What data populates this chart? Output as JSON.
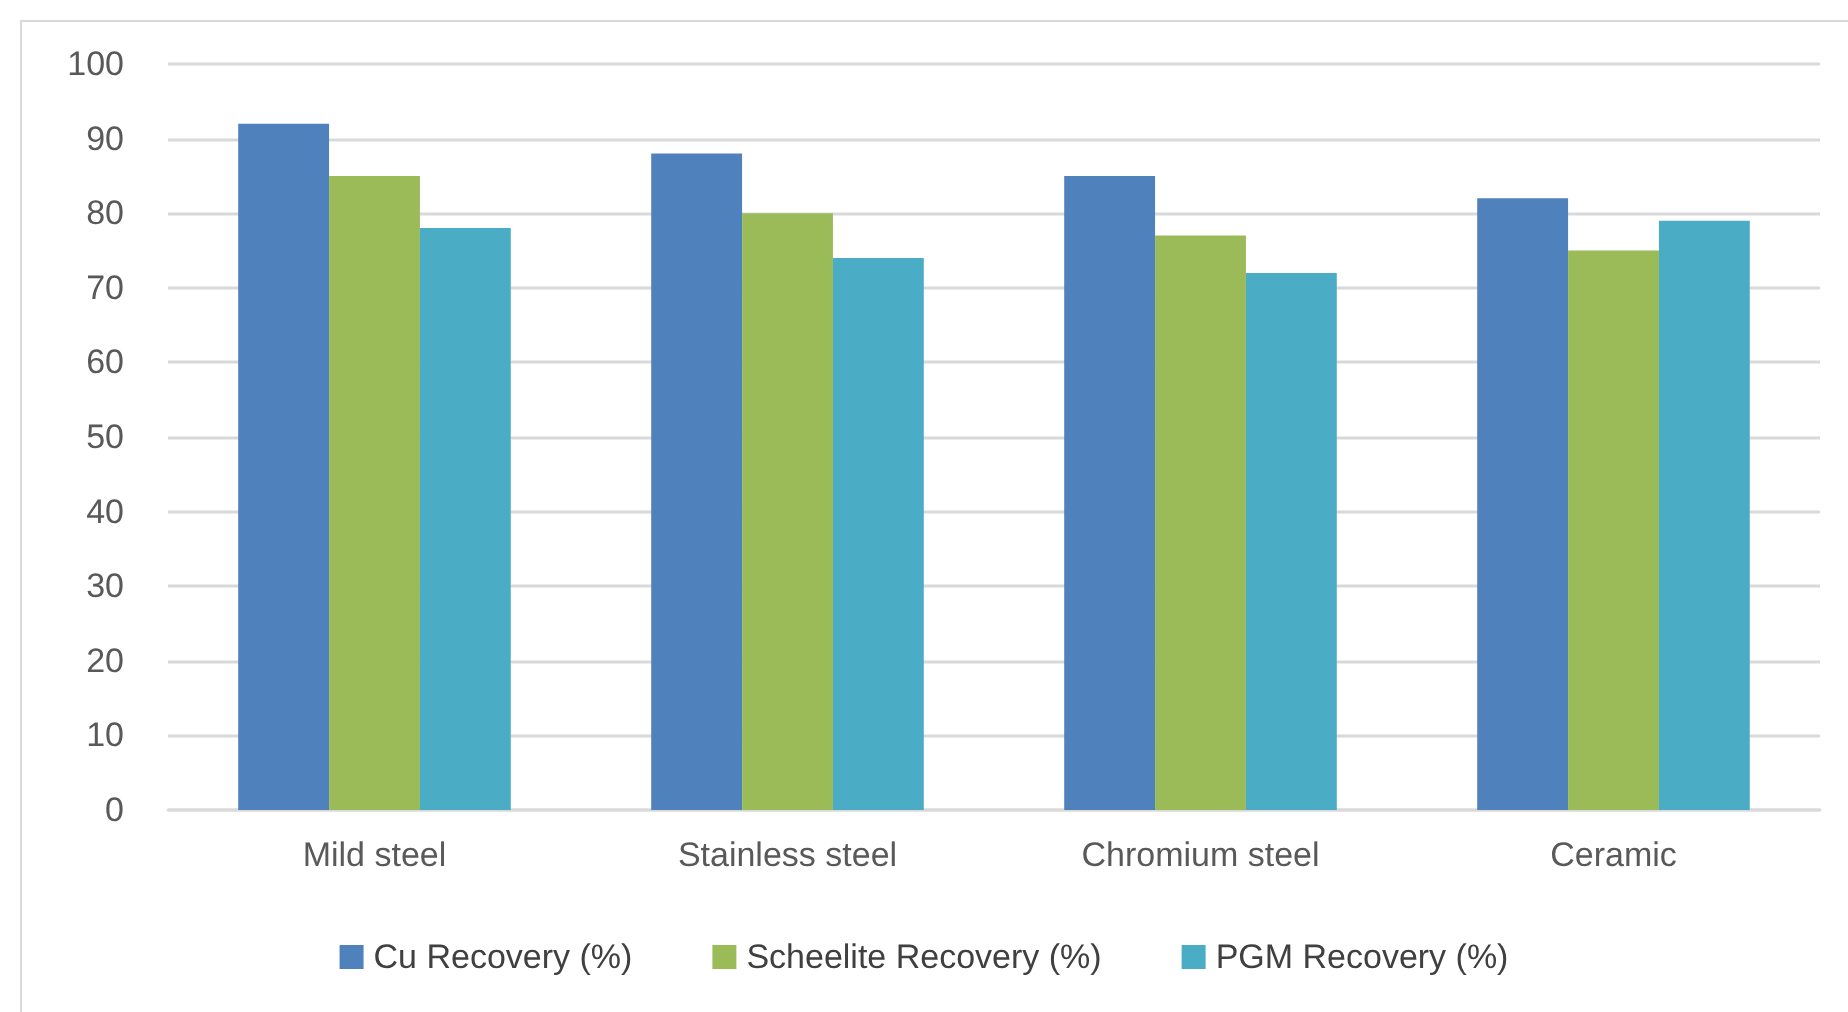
{
  "chart_data": {
    "type": "bar",
    "categories": [
      "Mild steel",
      "Stainless steel",
      "Chromium steel",
      "Ceramic"
    ],
    "series": [
      {
        "name": "Cu Recovery (%)",
        "color": "#4f81bd",
        "values": [
          92,
          88,
          85,
          82
        ]
      },
      {
        "name": "Scheelite Recovery (%)",
        "color": "#9bbb59",
        "values": [
          85,
          80,
          77,
          75
        ]
      },
      {
        "name": "PGM Recovery (%)",
        "color": "#4bacc6",
        "values": [
          78,
          74,
          72,
          79
        ]
      }
    ],
    "ylim": [
      0,
      100
    ],
    "yticks": [
      0,
      10,
      20,
      30,
      40,
      50,
      60,
      70,
      80,
      90,
      100
    ],
    "grid": "y",
    "legend": "bottom"
  }
}
